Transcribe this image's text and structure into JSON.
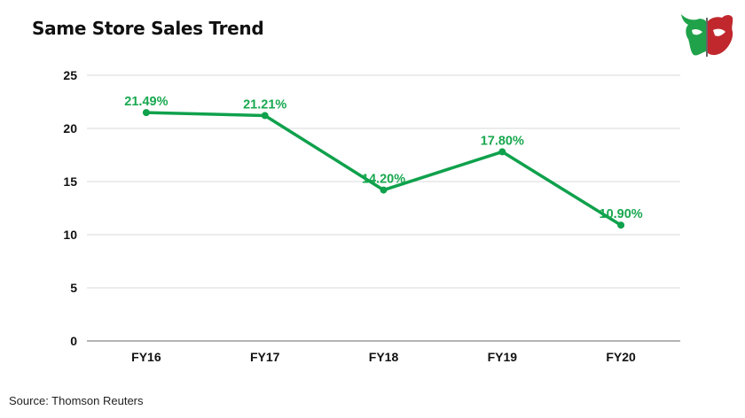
{
  "title": "Same Store Sales Trend",
  "source": "Source: Thomson Reuters",
  "logo": {
    "icon": "bull-bear-logo",
    "colors": {
      "green": "#1fa24a",
      "red": "#c0282d"
    }
  },
  "chart_data": {
    "type": "line",
    "categories": [
      "FY16",
      "FY17",
      "FY18",
      "FY19",
      "FY20"
    ],
    "values": [
      21.49,
      21.21,
      14.2,
      17.8,
      10.9
    ],
    "data_labels": [
      "21.49%",
      "21.21%",
      "14.20%",
      "17.80%",
      "10.90%"
    ],
    "yticks": [
      "0",
      "5",
      "10",
      "15",
      "20",
      "25"
    ],
    "ylim": [
      0,
      25
    ],
    "grid": true,
    "line_color": "#0fa14c",
    "label_color": "#18a84f"
  }
}
